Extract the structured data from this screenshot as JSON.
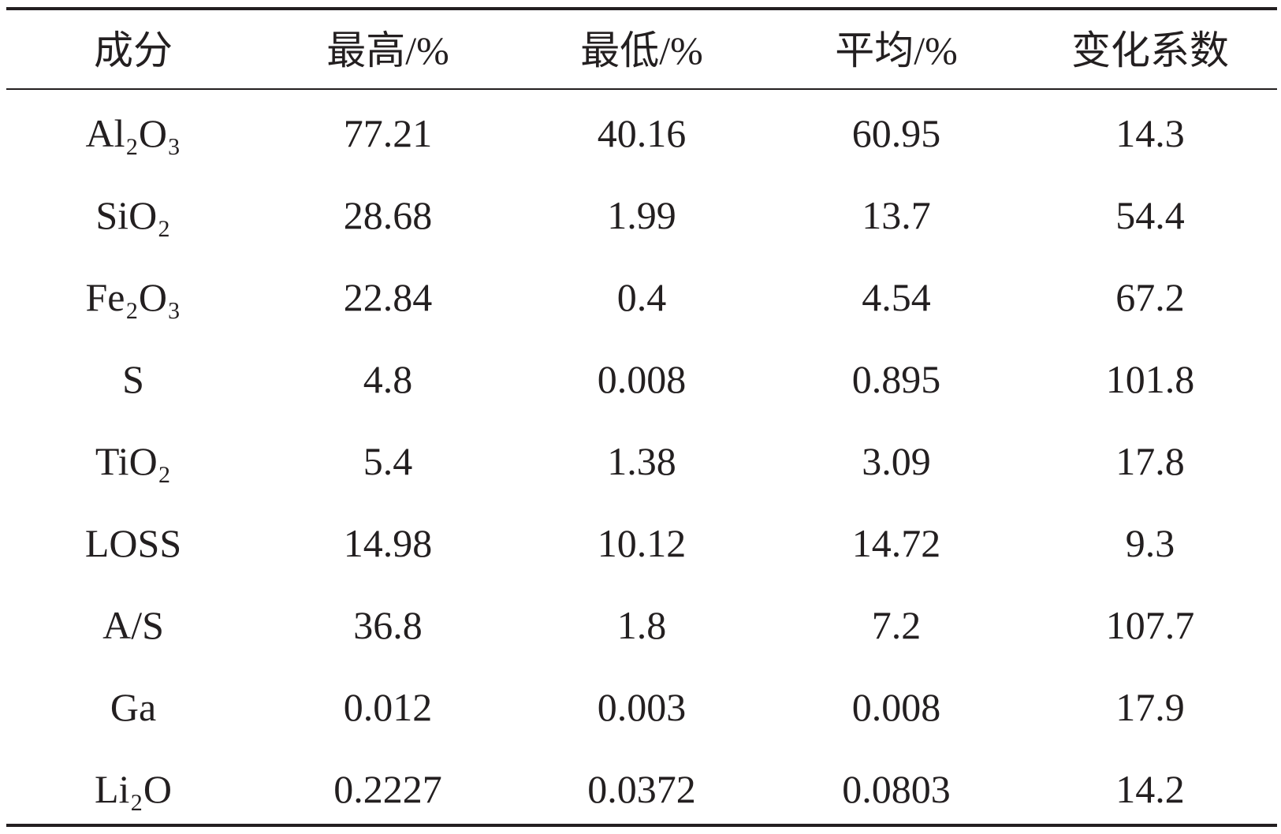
{
  "table": {
    "header": [
      "成分",
      "最高/%",
      "最低/%",
      "平均/%",
      "变化系数"
    ],
    "rows": [
      [
        "Al₂O₃",
        77.21,
        40.16,
        60.95,
        14.3
      ],
      [
        "SiO₂",
        28.68,
        1.99,
        13.7,
        54.4
      ],
      [
        "Fe₂O₃",
        22.84,
        0.4,
        4.54,
        67.2
      ],
      [
        "S",
        4.8,
        0.008,
        0.895,
        101.8
      ],
      [
        "TiO₂",
        5.4,
        1.38,
        3.09,
        17.8
      ],
      [
        "LOSS",
        14.98,
        10.12,
        14.72,
        9.3
      ],
      [
        "A/S",
        36.8,
        1.8,
        7.2,
        107.7
      ],
      [
        "Ga",
        0.012,
        0.003,
        0.008,
        17.9
      ],
      [
        "Li₂O",
        0.2227,
        0.0372,
        0.0803,
        14.2
      ]
    ]
  }
}
